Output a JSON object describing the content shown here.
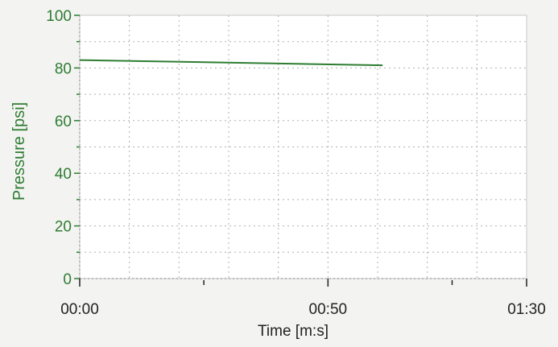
{
  "chart_data": {
    "type": "line",
    "title": "",
    "xlabel": "Time [m:s]",
    "ylabel": "Pressure [psi]",
    "x_tick_labels": [
      "00:00",
      "00:50",
      "01:30"
    ],
    "x_tick_values_seconds": [
      0,
      50,
      90
    ],
    "y_tick_labels": [
      "0",
      "20",
      "40",
      "60",
      "80",
      "100"
    ],
    "y_tick_values": [
      0,
      20,
      40,
      60,
      80,
      100
    ],
    "xlim_seconds": [
      0,
      90
    ],
    "ylim": [
      0,
      100
    ],
    "grid": true,
    "series": [
      {
        "x_seconds": [
          0,
          61
        ],
        "values": [
          83,
          81
        ]
      }
    ],
    "colors": {
      "series": "#2e7d32",
      "ylabel": "#2e7d32",
      "y_ticks": "#2e7d32",
      "x_text": "#222222",
      "grid": "#b0b0b0",
      "frame": "#c8c8c8",
      "plot_bg": "#ffffff"
    }
  }
}
